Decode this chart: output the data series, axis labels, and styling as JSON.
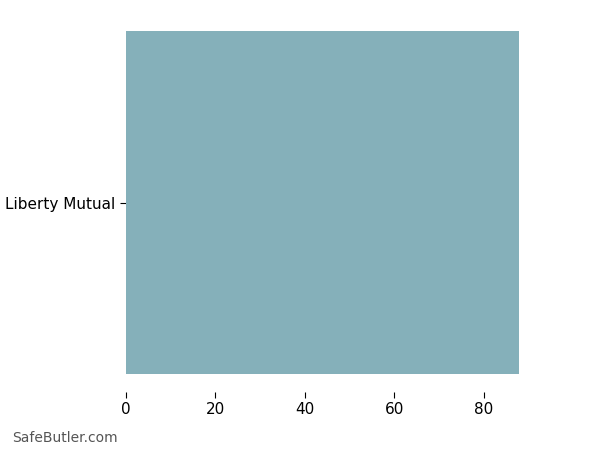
{
  "categories": [
    "Liberty Mutual"
  ],
  "values": [
    88
  ],
  "bar_color": "#85b0ba",
  "xlim": [
    0,
    100
  ],
  "xticks": [
    0,
    20,
    40,
    60,
    80
  ],
  "background_color": "#ffffff",
  "grid_color": "#ffffff",
  "tick_label_fontsize": 11,
  "watermark": "SafeButler.com",
  "watermark_fontsize": 10,
  "watermark_color": "#555555"
}
